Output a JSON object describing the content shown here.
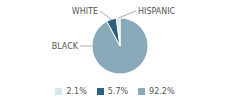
{
  "chart_data": {
    "type": "pie",
    "categories": [
      "92.2%",
      "5.7%",
      "2.1%"
    ],
    "values": [
      92.2,
      5.7,
      2.1
    ],
    "colors": [
      "#8aaaba",
      "#2e5f7e",
      "#d8e8f0"
    ],
    "annotations": [
      "BLACK",
      "WHITE",
      "HISPANIC"
    ],
    "legend": "bottom"
  }
}
